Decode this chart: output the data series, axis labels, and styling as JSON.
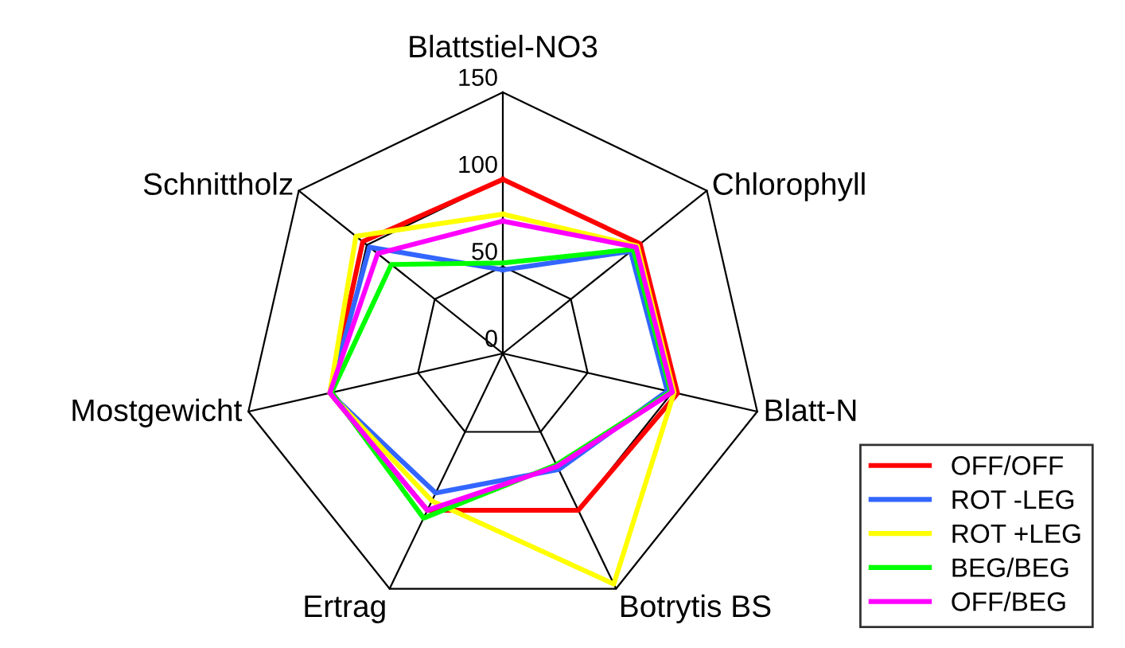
{
  "chart_data": {
    "type": "radar",
    "categories": [
      "Blattstiel-NO3",
      "Chlorophyll",
      "Blatt-N",
      "Botrytis BS",
      "Ertrag",
      "Mostgewicht",
      "Schnittholz"
    ],
    "ylim": [
      0,
      150
    ],
    "yticks": [
      0,
      50,
      100,
      150
    ],
    "grid": true,
    "legend": "bottom right",
    "series": [
      {
        "name": "OFF/OFF",
        "color": "#ff0000",
        "values": [
          100,
          101,
          103,
          100,
          100,
          102,
          103
        ]
      },
      {
        "name": "ROT -LEG",
        "color": "#3366ff",
        "values": [
          48,
          94,
          97,
          74,
          89,
          102,
          98
        ]
      },
      {
        "name": "ROT +LEG",
        "color": "#ffff00",
        "values": [
          80,
          99,
          101,
          147,
          94,
          102,
          108
        ]
      },
      {
        "name": "BEG/BEG",
        "color": "#00ff00",
        "values": [
          52,
          96,
          99,
          71,
          105,
          101,
          82
        ]
      },
      {
        "name": "OFF/BEG",
        "color": "#ff00ff",
        "values": [
          76,
          98,
          100,
          72,
          100,
          102,
          92
        ]
      }
    ]
  }
}
